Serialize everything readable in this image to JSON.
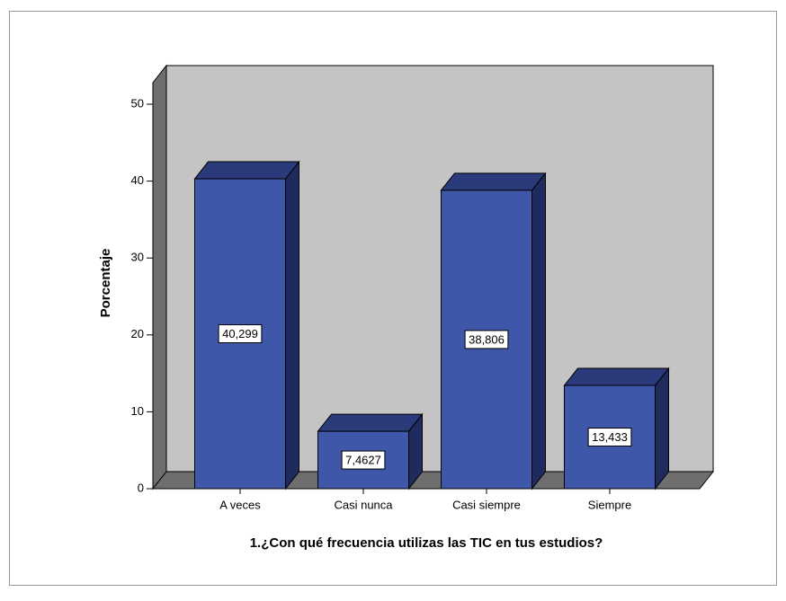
{
  "chart_data": {
    "type": "bar3d",
    "categories": [
      "A veces",
      "Casi nunca",
      "Casi siempre",
      "Siempre"
    ],
    "values": [
      40.299,
      7.4627,
      38.806,
      13.433
    ],
    "value_labels": [
      "40,299",
      "7,4627",
      "38,806",
      "13,433"
    ],
    "color": "#3f57a8",
    "xlabel": "1.¿Con qué frecuencia utilizas las TIC en tus estudios?",
    "ylabel": "Porcentaje",
    "ylim": [
      0,
      50
    ],
    "yticks": [
      0,
      10,
      20,
      30,
      40,
      50
    ]
  }
}
